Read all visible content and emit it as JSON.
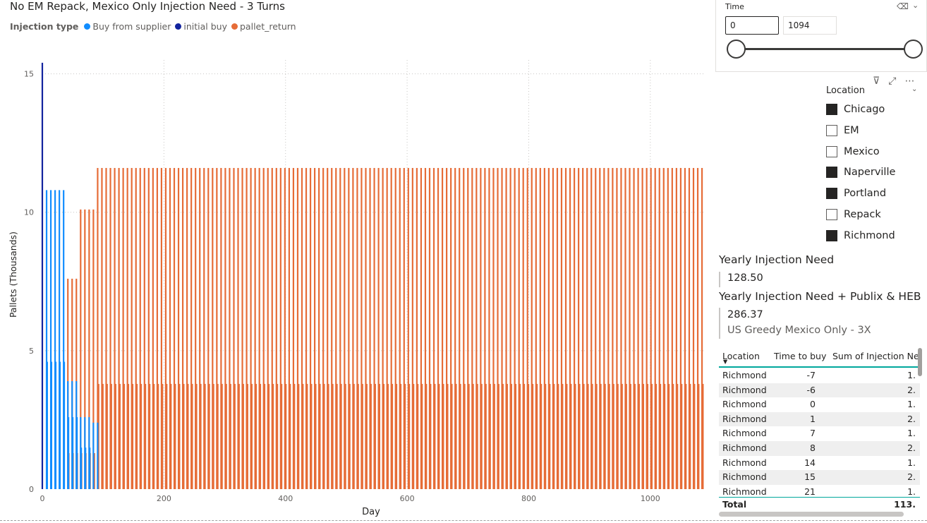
{
  "chart_title": "No EM Repack, Mexico Only Injection Need - 3 Turns",
  "legend": {
    "title": "Injection type",
    "items": [
      {
        "label": "Buy from supplier",
        "color": "#118dff"
      },
      {
        "label": "initial buy",
        "color": "#12239e"
      },
      {
        "label": "pallet_return",
        "color": "#e66c37"
      }
    ]
  },
  "chart_data": {
    "type": "bar",
    "xlabel": "Day",
    "ylabel": "Pallets (Thousands)",
    "xlim": [
      0,
      1100
    ],
    "ylim": [
      0,
      15.5
    ],
    "x_ticks": [
      0,
      200,
      400,
      600,
      800,
      1000
    ],
    "y_ticks": [
      0,
      5,
      10,
      15
    ],
    "grid": "dotted",
    "legend_placement": "top-left",
    "initial_buy": [
      {
        "day": 0,
        "value": 15.4
      }
    ],
    "buy_from_supplier": [
      {
        "day": 7,
        "value": 10.8
      },
      {
        "day": 8,
        "value": 4.6
      },
      {
        "day": 14,
        "value": 10.8
      },
      {
        "day": 15,
        "value": 4.6
      },
      {
        "day": 21,
        "value": 10.8
      },
      {
        "day": 22,
        "value": 4.6
      },
      {
        "day": 28,
        "value": 10.8
      },
      {
        "day": 29,
        "value": 4.6
      },
      {
        "day": 35,
        "value": 10.8
      },
      {
        "day": 36,
        "value": 4.6
      },
      {
        "day": 42,
        "value": 3.9
      },
      {
        "day": 49,
        "value": 3.9
      },
      {
        "day": 56,
        "value": 3.9
      },
      {
        "day": 43,
        "value": 2.6
      },
      {
        "day": 50,
        "value": 2.6
      },
      {
        "day": 57,
        "value": 2.6
      },
      {
        "day": 63,
        "value": 2.6
      },
      {
        "day": 70,
        "value": 2.6
      },
      {
        "day": 77,
        "value": 2.6
      },
      {
        "day": 64,
        "value": 1.5
      },
      {
        "day": 71,
        "value": 1.5
      },
      {
        "day": 78,
        "value": 1.5
      },
      {
        "day": 84,
        "value": 2.4
      },
      {
        "day": 91,
        "value": 2.4
      }
    ],
    "pallet_return_pattern": {
      "start_day": 42,
      "end_day": 1090,
      "step_days": 7,
      "phases": [
        {
          "from": 42,
          "to": 56,
          "high": 7.6,
          "low": 1.3
        },
        {
          "from": 63,
          "to": 84,
          "high": 10.1,
          "low": 1.3
        },
        {
          "from": 91,
          "to": 1090,
          "high": 11.6,
          "low": 3.8
        }
      ]
    }
  },
  "time_slicer": {
    "title": "Time",
    "min_value": "0",
    "max_value": "1094"
  },
  "location_slicer": {
    "title": "Location",
    "items": [
      {
        "label": "Chicago",
        "checked": true
      },
      {
        "label": "EM",
        "checked": false
      },
      {
        "label": "Mexico",
        "checked": false
      },
      {
        "label": "Naperville",
        "checked": true
      },
      {
        "label": "Portland",
        "checked": true
      },
      {
        "label": "Repack",
        "checked": false
      },
      {
        "label": "Richmond",
        "checked": true
      }
    ]
  },
  "card1": {
    "title": "Yearly Injection Need",
    "value": "128.50"
  },
  "card2": {
    "title": "Yearly Injection Need + Publix & HEB",
    "value": "286.37",
    "subtitle": "US Greedy Mexico Only - 3X"
  },
  "table": {
    "headers": [
      "Location",
      "Time to buy",
      "Sum of Injection Ne"
    ],
    "rows": [
      [
        "Richmond",
        "-7",
        "1."
      ],
      [
        "Richmond",
        "-6",
        "2."
      ],
      [
        "Richmond",
        "0",
        "1."
      ],
      [
        "Richmond",
        "1",
        "2."
      ],
      [
        "Richmond",
        "7",
        "1."
      ],
      [
        "Richmond",
        "8",
        "2."
      ],
      [
        "Richmond",
        "14",
        "1."
      ],
      [
        "Richmond",
        "15",
        "2."
      ],
      [
        "Richmond",
        "21",
        "1."
      ]
    ],
    "total_label": "Total",
    "total_value": "113."
  }
}
